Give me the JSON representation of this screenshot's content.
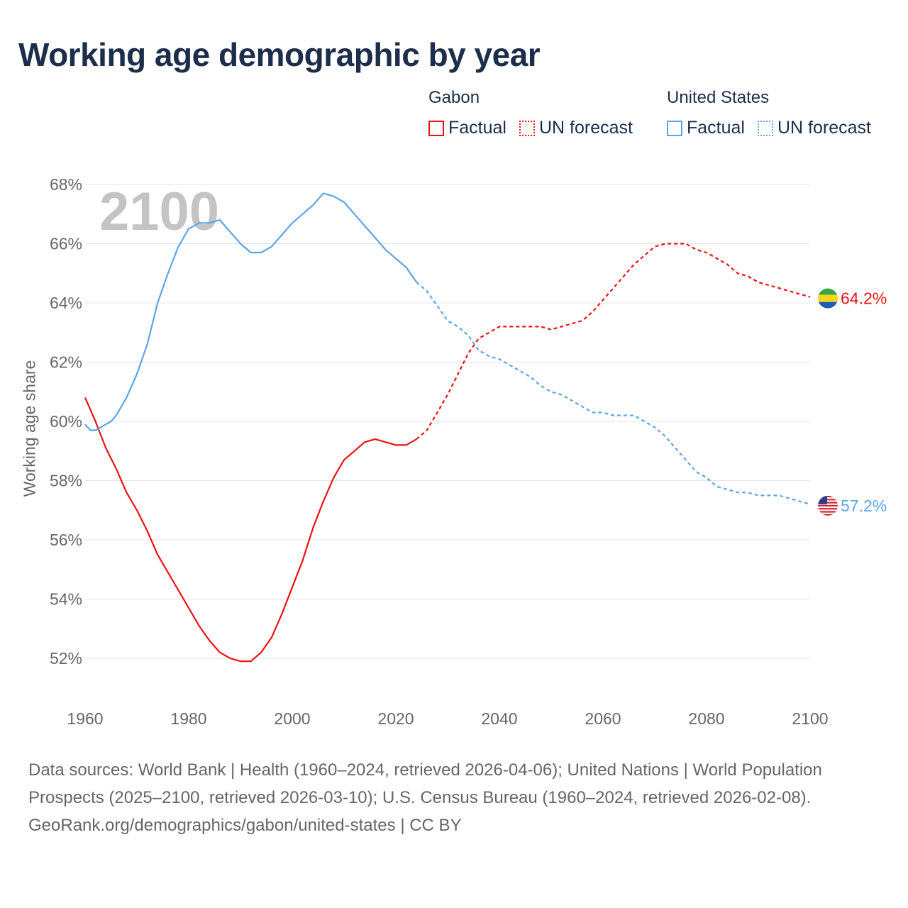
{
  "title": "Working age demographic by year",
  "legend": {
    "groups": [
      {
        "name": "Gabon",
        "factual_label": "Factual",
        "forecast_label": "UN forecast",
        "color": "#ee1111"
      },
      {
        "name": "United States",
        "factual_label": "Factual",
        "forecast_label": "UN forecast",
        "color": "#5aa6e6"
      }
    ]
  },
  "year_watermark": "2100",
  "footer": {
    "sources": "Data sources: World Bank | Health (1960–2024, retrieved 2026-04-06); United Nations | World Population Prospects (2025–2100, retrieved 2026-03-10); U.S. Census Bureau (1960–2024, retrieved 2026-02-08).",
    "credit": "GeoRank.org/demographics/gabon/united-states | CC BY"
  },
  "chart_data": {
    "type": "line",
    "title": "Working age demographic by year",
    "xlabel": "",
    "ylabel": "Working age share",
    "xlim": [
      1960,
      2100
    ],
    "ylim": [
      51,
      68.5
    ],
    "x_ticks": [
      1960,
      1980,
      2000,
      2020,
      2040,
      2060,
      2080,
      2100
    ],
    "x_tick_labels": [
      "1960",
      "1980",
      "2000",
      "2020",
      "2040",
      "2060",
      "2080",
      "2100"
    ],
    "y_ticks": [
      52,
      54,
      56,
      58,
      60,
      62,
      64,
      66,
      68
    ],
    "y_tick_labels": [
      "52%",
      "54%",
      "56%",
      "58%",
      "60%",
      "62%",
      "64%",
      "66%",
      "68%"
    ],
    "grid": true,
    "forecast_start": 2024,
    "series": [
      {
        "name": "Gabon",
        "color": "#ee1111",
        "end_label": "64.2%",
        "flag": "gabon-flag",
        "points": [
          [
            1960,
            60.8
          ],
          [
            1962,
            60.0
          ],
          [
            1964,
            59.1
          ],
          [
            1966,
            58.4
          ],
          [
            1968,
            57.6
          ],
          [
            1970,
            57.0
          ],
          [
            1972,
            56.3
          ],
          [
            1974,
            55.5
          ],
          [
            1976,
            54.9
          ],
          [
            1978,
            54.3
          ],
          [
            1980,
            53.7
          ],
          [
            1982,
            53.1
          ],
          [
            1984,
            52.6
          ],
          [
            1986,
            52.2
          ],
          [
            1988,
            52.0
          ],
          [
            1990,
            51.9
          ],
          [
            1992,
            51.9
          ],
          [
            1994,
            52.2
          ],
          [
            1996,
            52.7
          ],
          [
            1998,
            53.5
          ],
          [
            2000,
            54.4
          ],
          [
            2002,
            55.3
          ],
          [
            2004,
            56.4
          ],
          [
            2006,
            57.3
          ],
          [
            2008,
            58.1
          ],
          [
            2010,
            58.7
          ],
          [
            2012,
            59.0
          ],
          [
            2014,
            59.3
          ],
          [
            2016,
            59.4
          ],
          [
            2018,
            59.3
          ],
          [
            2020,
            59.2
          ],
          [
            2022,
            59.2
          ],
          [
            2024,
            59.4
          ],
          [
            2026,
            59.7
          ],
          [
            2028,
            60.3
          ],
          [
            2030,
            60.9
          ],
          [
            2032,
            61.6
          ],
          [
            2034,
            62.3
          ],
          [
            2036,
            62.8
          ],
          [
            2038,
            63.0
          ],
          [
            2040,
            63.2
          ],
          [
            2044,
            63.2
          ],
          [
            2048,
            63.2
          ],
          [
            2050,
            63.1
          ],
          [
            2052,
            63.2
          ],
          [
            2056,
            63.4
          ],
          [
            2058,
            63.7
          ],
          [
            2060,
            64.1
          ],
          [
            2062,
            64.5
          ],
          [
            2064,
            64.9
          ],
          [
            2066,
            65.3
          ],
          [
            2068,
            65.6
          ],
          [
            2070,
            65.9
          ],
          [
            2072,
            66.0
          ],
          [
            2076,
            66.0
          ],
          [
            2078,
            65.8
          ],
          [
            2080,
            65.7
          ],
          [
            2082,
            65.5
          ],
          [
            2084,
            65.3
          ],
          [
            2086,
            65.0
          ],
          [
            2088,
            64.9
          ],
          [
            2090,
            64.7
          ],
          [
            2092,
            64.6
          ],
          [
            2094,
            64.5
          ],
          [
            2096,
            64.4
          ],
          [
            2098,
            64.3
          ],
          [
            2100,
            64.2
          ]
        ]
      },
      {
        "name": "United States",
        "color": "#5aa6e6",
        "end_label": "57.2%",
        "flag": "us-flag",
        "points": [
          [
            1960,
            59.9
          ],
          [
            1961,
            59.7
          ],
          [
            1962,
            59.7
          ],
          [
            1963,
            59.8
          ],
          [
            1964,
            59.9
          ],
          [
            1965,
            60.0
          ],
          [
            1966,
            60.2
          ],
          [
            1968,
            60.8
          ],
          [
            1970,
            61.6
          ],
          [
            1972,
            62.6
          ],
          [
            1974,
            64.0
          ],
          [
            1976,
            65.0
          ],
          [
            1978,
            65.9
          ],
          [
            1980,
            66.5
          ],
          [
            1982,
            66.7
          ],
          [
            1984,
            66.7
          ],
          [
            1986,
            66.8
          ],
          [
            1988,
            66.4
          ],
          [
            1990,
            66.0
          ],
          [
            1992,
            65.7
          ],
          [
            1994,
            65.7
          ],
          [
            1996,
            65.9
          ],
          [
            1998,
            66.3
          ],
          [
            2000,
            66.7
          ],
          [
            2002,
            67.0
          ],
          [
            2004,
            67.3
          ],
          [
            2006,
            67.7
          ],
          [
            2008,
            67.6
          ],
          [
            2010,
            67.4
          ],
          [
            2012,
            67.0
          ],
          [
            2014,
            66.6
          ],
          [
            2016,
            66.2
          ],
          [
            2018,
            65.8
          ],
          [
            2020,
            65.5
          ],
          [
            2022,
            65.2
          ],
          [
            2024,
            64.7
          ],
          [
            2026,
            64.4
          ],
          [
            2028,
            63.9
          ],
          [
            2030,
            63.4
          ],
          [
            2032,
            63.2
          ],
          [
            2034,
            62.9
          ],
          [
            2036,
            62.4
          ],
          [
            2038,
            62.2
          ],
          [
            2040,
            62.1
          ],
          [
            2042,
            61.9
          ],
          [
            2044,
            61.7
          ],
          [
            2046,
            61.5
          ],
          [
            2048,
            61.2
          ],
          [
            2050,
            61.0
          ],
          [
            2052,
            60.9
          ],
          [
            2054,
            60.7
          ],
          [
            2056,
            60.5
          ],
          [
            2058,
            60.3
          ],
          [
            2060,
            60.3
          ],
          [
            2062,
            60.2
          ],
          [
            2066,
            60.2
          ],
          [
            2068,
            60.0
          ],
          [
            2070,
            59.8
          ],
          [
            2072,
            59.5
          ],
          [
            2074,
            59.1
          ],
          [
            2076,
            58.7
          ],
          [
            2078,
            58.3
          ],
          [
            2080,
            58.1
          ],
          [
            2082,
            57.8
          ],
          [
            2084,
            57.7
          ],
          [
            2086,
            57.6
          ],
          [
            2088,
            57.6
          ],
          [
            2090,
            57.5
          ],
          [
            2094,
            57.5
          ],
          [
            2096,
            57.4
          ],
          [
            2098,
            57.3
          ],
          [
            2100,
            57.2
          ]
        ]
      }
    ]
  }
}
